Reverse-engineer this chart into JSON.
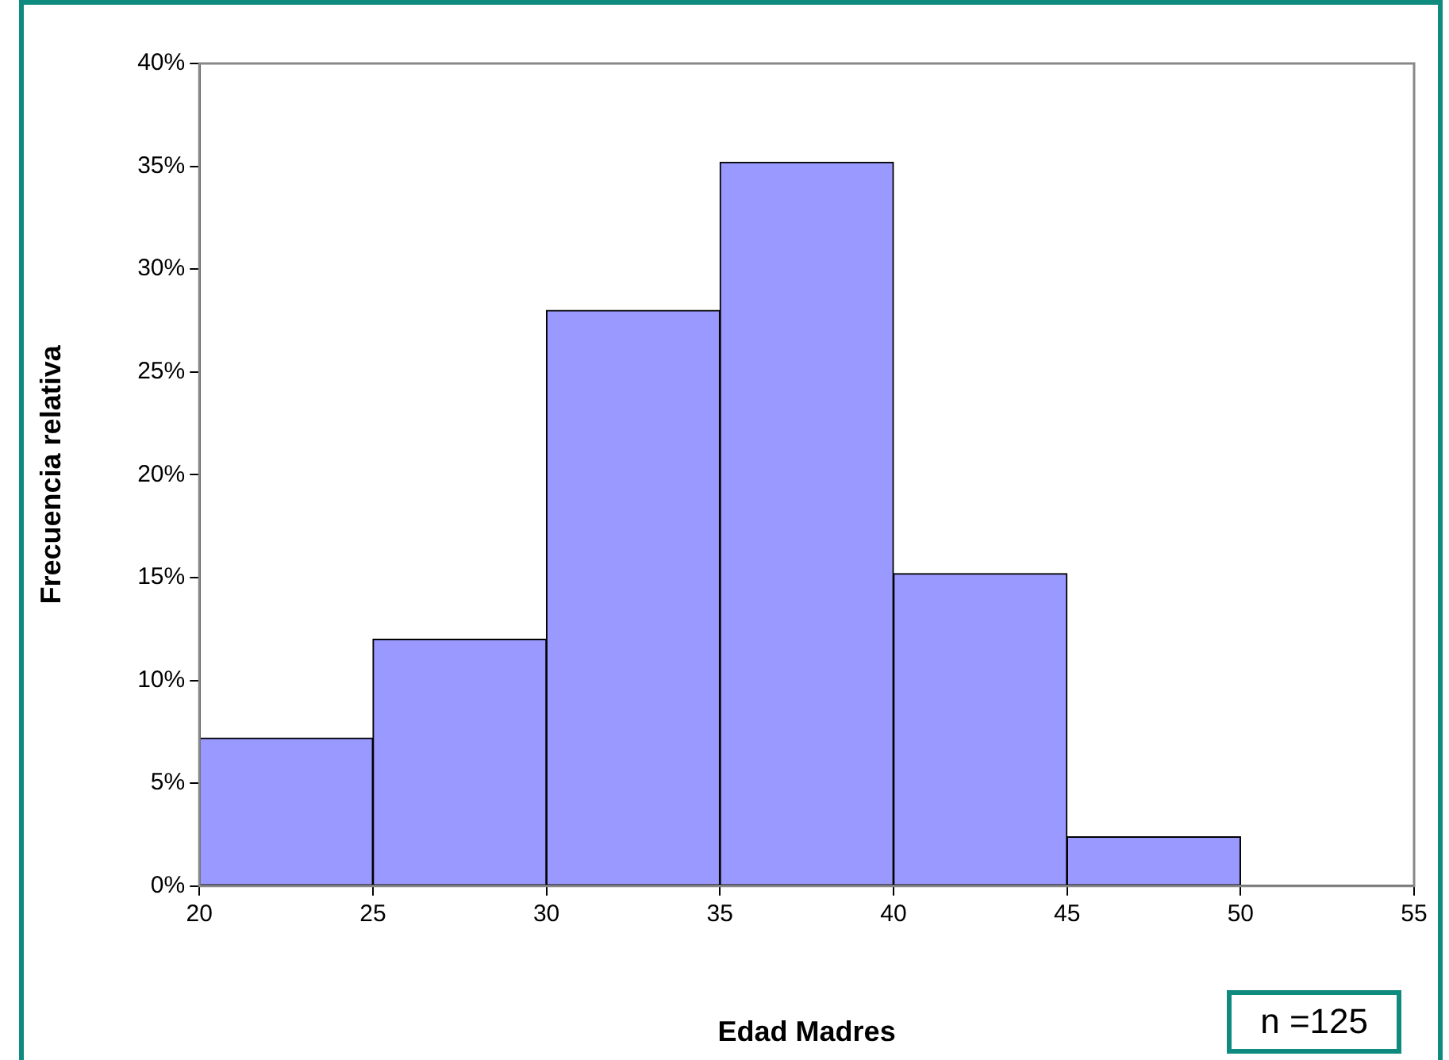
{
  "chart_data": {
    "type": "histogram",
    "xlabel": "Edad Madres",
    "ylabel": "Frecuencia relativa",
    "bins": [
      20,
      25,
      30,
      35,
      40,
      45,
      50,
      55
    ],
    "values": [
      7.2,
      12,
      28,
      35.2,
      15.2,
      2.4,
      0
    ],
    "color": "#9999ff",
    "xlim": [
      20,
      55
    ],
    "xticks": [
      20,
      25,
      30,
      35,
      40,
      45,
      50,
      55
    ],
    "ylim": [
      0,
      40
    ],
    "yticks": [
      {
        "value": 0,
        "label": "0%"
      },
      {
        "value": 5,
        "label": "5%"
      },
      {
        "value": 10,
        "label": "10%"
      },
      {
        "value": 15,
        "label": "15%"
      },
      {
        "value": 20,
        "label": "20%"
      },
      {
        "value": 25,
        "label": "25%"
      },
      {
        "value": 30,
        "label": "30%"
      },
      {
        "value": 35,
        "label": "35%"
      },
      {
        "value": 40,
        "label": "40%"
      }
    ],
    "grid": false,
    "legend": false,
    "annotations": [
      "n =125"
    ]
  }
}
